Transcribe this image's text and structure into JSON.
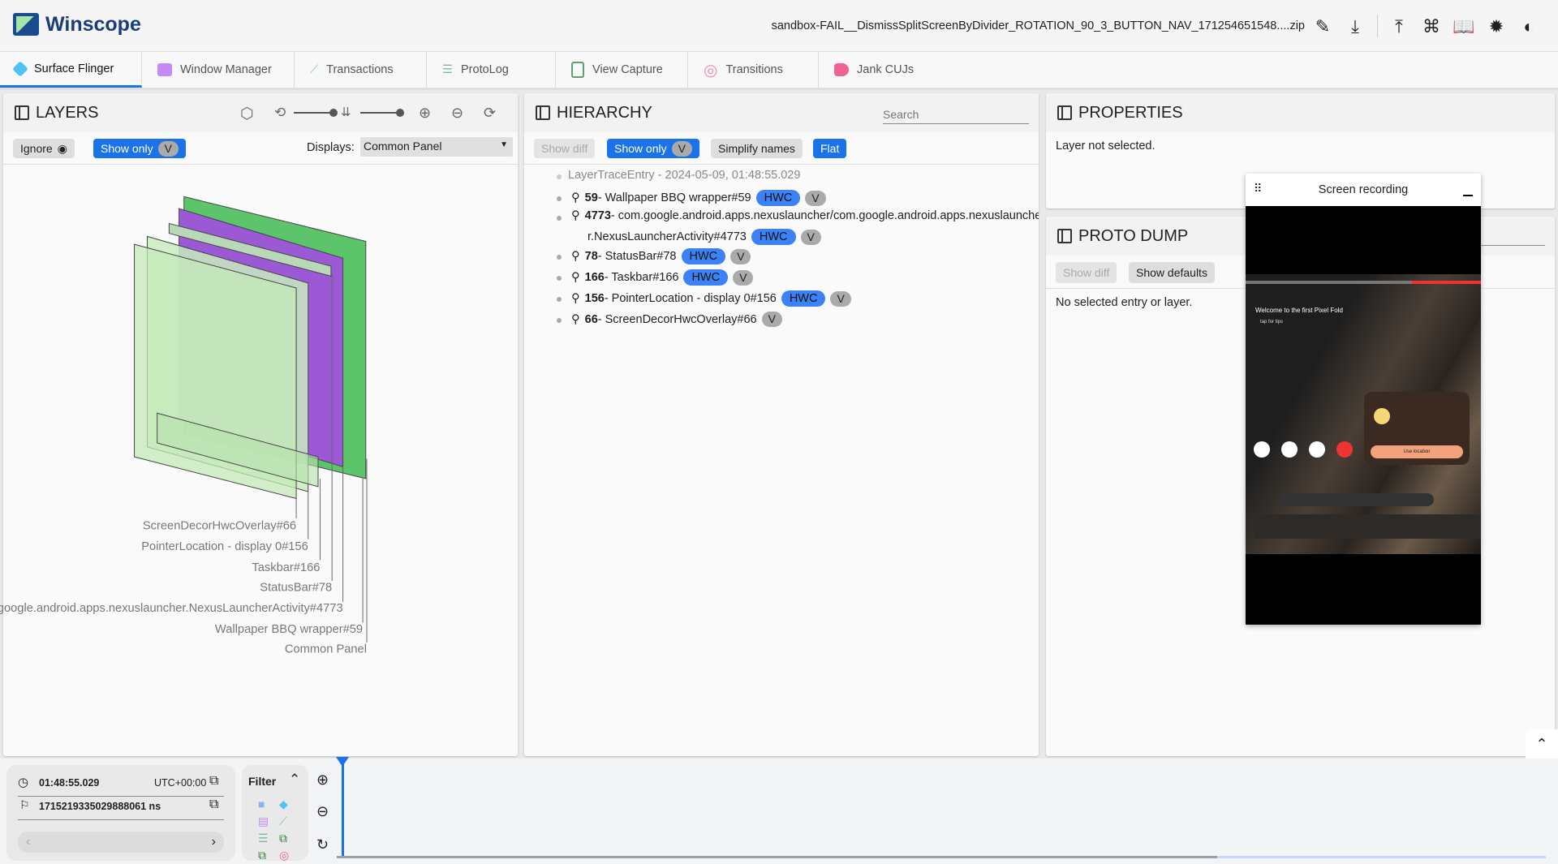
{
  "app": {
    "title": "Winscope",
    "filename": "sandbox-FAIL__DismissSplitScreenByDivider_ROTATION_90_3_BUTTON_NAV_171254651548....zip",
    "toolbar_icons": [
      "edit-icon",
      "download-icon",
      "upload-icon",
      "shortcut-icon",
      "docs-icon",
      "bug-icon",
      "theme-icon"
    ]
  },
  "tabs": [
    {
      "label": "Surface Flinger",
      "color": "#4fc3f7",
      "active": true
    },
    {
      "label": "Window Manager",
      "color": "#c58af9"
    },
    {
      "label": "Transactions",
      "color": "#81c995"
    },
    {
      "label": "ProtoLog",
      "color": "#7cb8a8"
    },
    {
      "label": "View Capture",
      "color": "#5f9e6e"
    },
    {
      "label": "Transitions",
      "color": "#f28ba8"
    },
    {
      "label": "Jank CUJs",
      "color": "#f06292"
    }
  ],
  "layers": {
    "title": "LAYERS",
    "ignore": "Ignore",
    "show_only": "Show only",
    "v": "V",
    "displays_label": "Displays:",
    "display_value": "Common Panel",
    "labels": [
      "ScreenDecorHwcOverlay#66",
      "PointerLocation - display 0#156",
      "Taskbar#166",
      "StatusBar#78",
      "google.android.apps.nexuslauncher.NexusLauncherActivity#4773",
      "Wallpaper BBQ wrapper#59",
      "Common Panel"
    ]
  },
  "hierarchy": {
    "title": "HIERARCHY",
    "search_placeholder": "Search",
    "show_diff": "Show diff",
    "show_only": "Show only",
    "v": "V",
    "simplify": "Simplify names",
    "flat": "Flat",
    "root": "LayerTraceEntry - 2024-05-09, 01:48:55.029",
    "items": [
      {
        "id": "59",
        "name": " - Wallpaper BBQ wrapper#59",
        "hwc": "HWC",
        "v": "V"
      },
      {
        "id": "4773",
        "name": " - com.google.android.apps.nexuslauncher/com.google.android.apps.nexuslauncher.NexusLauncherActivity#4773",
        "hwc": "HWC",
        "v": "V"
      },
      {
        "id": "78",
        "name": " - StatusBar#78",
        "hwc": "HWC",
        "v": "V"
      },
      {
        "id": "166",
        "name": " - Taskbar#166",
        "hwc": "HWC",
        "v": "V"
      },
      {
        "id": "156",
        "name": " - PointerLocation - display 0#156",
        "hwc": "HWC",
        "v": "V"
      },
      {
        "id": "66",
        "name": " - ScreenDecorHwcOverlay#66",
        "v": "V"
      }
    ],
    "line1_rest": " - com.google.android.apps.nexuslauncher/com.google.android.apps.nexuslaunche",
    "line2": "r.NexusLauncherActivity#4773"
  },
  "properties": {
    "title": "PROPERTIES",
    "empty": "Layer not selected."
  },
  "proto_dump": {
    "title": "PROTO DUMP",
    "show_diff": "Show diff",
    "show_defaults": "Show defaults",
    "empty": "No selected entry or layer."
  },
  "screen_recording": {
    "title": "Screen recording",
    "welcome": "Welcome to the first Pixel Fold",
    "tips": "tap for tips",
    "location_btn": "Use location"
  },
  "timeline": {
    "time": "01:48:55.029",
    "tz": "UTC+00:00",
    "ns": "1715219335029888061 ns",
    "filter": "Filter"
  }
}
